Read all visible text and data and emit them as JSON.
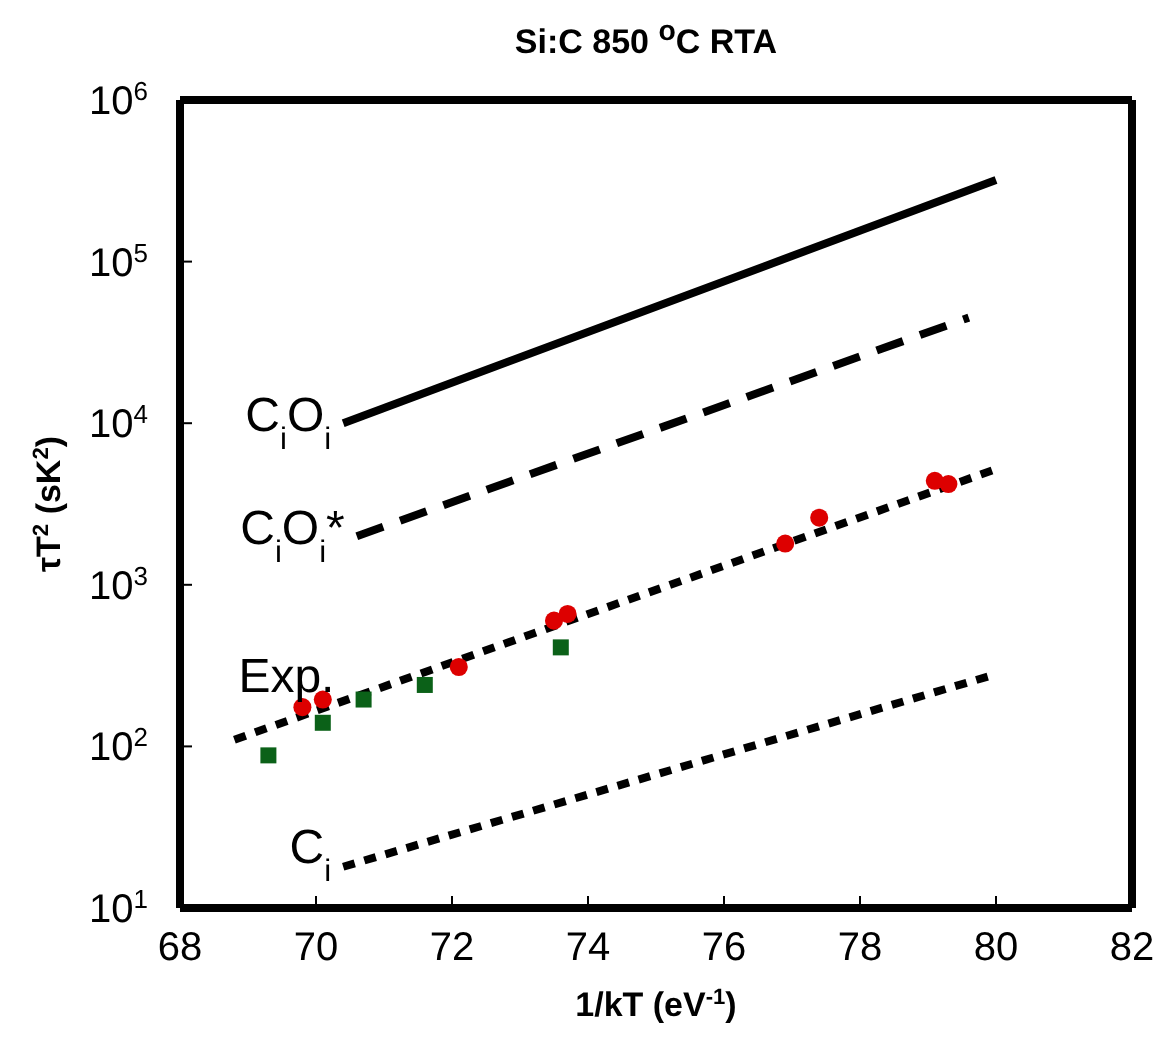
{
  "chart_data": {
    "type": "line",
    "title": "Si:C 850 $^{o}$C RTA",
    "xlabel": "1/kT (eV$^{-1}$)",
    "ylabel": "τT$^{2}$ (sK$^{2}$)",
    "log": "y",
    "xlim": [
      68,
      82
    ],
    "xticks": [
      68,
      70,
      72,
      74,
      76,
      78,
      80,
      82
    ],
    "ylim": [
      10,
      1000000
    ],
    "yticks": [
      {
        "value": 10,
        "label": "10$^{1}$"
      },
      {
        "value": 100,
        "label": "10$^{2}$"
      },
      {
        "value": 1000,
        "label": "10$^{3}$"
      },
      {
        "value": 10000,
        "label": "10$^{4}$"
      },
      {
        "value": 100000,
        "label": "10$^{5}$"
      },
      {
        "value": 1000000,
        "label": "10$^{6}$"
      }
    ],
    "series": [
      {
        "name": "C$_{i}$O$_{i}$",
        "color": "#000000",
        "line_style": "solid",
        "marker": "none",
        "x": [
          70.4,
          80
        ],
        "values": [
          10000,
          320000
        ]
      },
      {
        "name": "C$_{i}$O$_{i}$*",
        "color": "#000000",
        "line_style": "dashed",
        "marker": "none",
        "x": [
          70.6,
          79.6
        ],
        "values": [
          2000,
          45000
        ]
      },
      {
        "name": "Exp.",
        "color": "#000000",
        "line_style": "dotted",
        "marker": "none",
        "x": [
          68.8,
          80
        ],
        "values": [
          110,
          5200
        ]
      },
      {
        "name": "C$_{i}$",
        "color": "#000000",
        "line_style": "dotted",
        "marker": "none",
        "x": [
          70.4,
          80
        ],
        "values": [
          18,
          280
        ]
      },
      {
        "type": "scatter",
        "color": "#dd0000",
        "marker": "circle",
        "x": [
          69.8,
          70.1,
          72.1,
          73.5,
          73.7,
          76.9,
          77.4,
          79.1,
          79.3
        ],
        "values": [
          175,
          195,
          310,
          600,
          660,
          1800,
          2600,
          4400,
          4200
        ]
      },
      {
        "type": "scatter",
        "color": "#0b6118",
        "marker": "square",
        "x": [
          69.3,
          70.1,
          70.7,
          71.6,
          73.6
        ],
        "values": [
          88,
          140,
          195,
          240,
          410
        ]
      }
    ]
  }
}
